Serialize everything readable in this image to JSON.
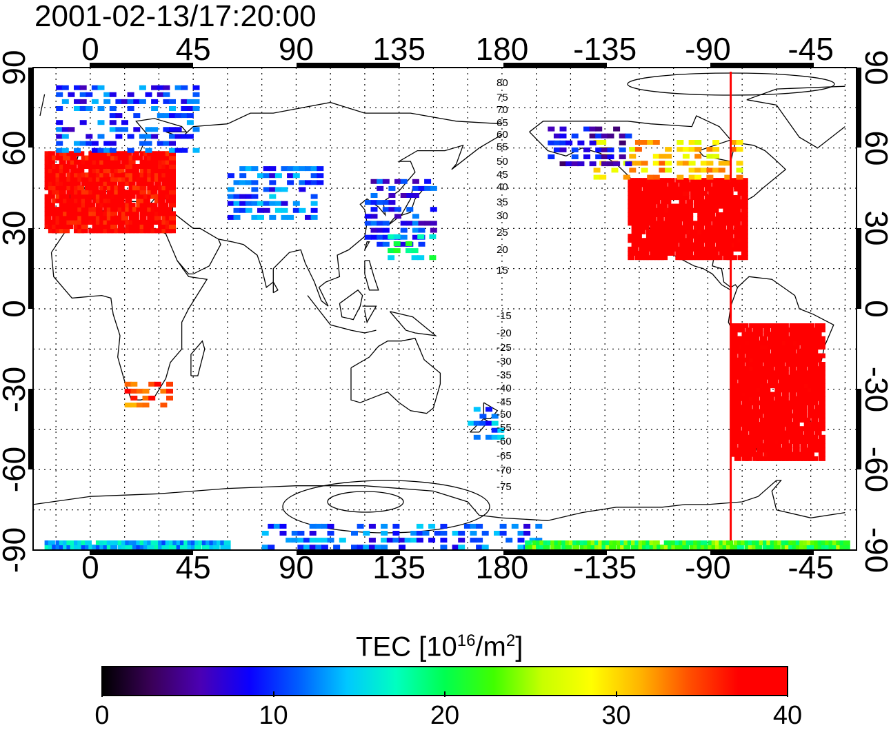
{
  "timestamp": "2001-02-13/17:20:00",
  "map": {
    "top_lon_ticks": [
      "0",
      "45",
      "90",
      "135",
      "180",
      "-135",
      "-90",
      "-45"
    ],
    "bottom_lon_ticks": [
      "0",
      "45",
      "90",
      "135",
      "180",
      "-135",
      "-90",
      "-45"
    ],
    "left_lat_ticks": [
      "90",
      "60",
      "30",
      "0",
      "-30",
      "-60",
      "-90"
    ],
    "right_lat_ticks": [
      "90",
      "60",
      "30",
      "0",
      "-30",
      "-60",
      "-90"
    ],
    "contour_labels": [
      "80",
      "75",
      "70",
      "65",
      "60",
      "55",
      "50",
      "45",
      "40",
      "35",
      "30",
      "25",
      "20",
      "15",
      "-15",
      "-20",
      "-25",
      "-30",
      "-35",
      "-40",
      "-45",
      "-50",
      "-55",
      "-60",
      "-65",
      "-70",
      "-75"
    ],
    "marker_line_lon": -80,
    "marker_line_color": "#ff0000"
  },
  "colorbar": {
    "title_prefix": "TEC  [10",
    "title_sup1": "16",
    "title_mid": "/m",
    "title_sup2": "2",
    "title_suffix": "]",
    "min": 0,
    "max": 40,
    "tick_labels": [
      "0",
      "10",
      "20",
      "30",
      "40"
    ],
    "colormap": [
      "#000000",
      "#3a0058",
      "#4b00b4",
      "#0a00ff",
      "#005dff",
      "#00c8ff",
      "#00ffc0",
      "#00ff50",
      "#40ff00",
      "#c8ff00",
      "#ffff00",
      "#ffb400",
      "#ff5000",
      "#ff0000",
      "#ff0000"
    ]
  },
  "chart_data": {
    "type": "map",
    "title": "2001-02-13/17:20:00",
    "value_label": "TEC [10^16/m^2]",
    "value_range": [
      0,
      40
    ],
    "lon_range": [
      -25,
      335
    ],
    "lat_range": [
      -90,
      90
    ],
    "regions": [
      {
        "lon": [
          -20,
          35
        ],
        "lat": [
          30,
          60
        ],
        "value": 38
      },
      {
        "lon": [
          -15,
          45
        ],
        "lat": [
          60,
          85
        ],
        "value": 10
      },
      {
        "lon": [
          60,
          100
        ],
        "lat": [
          35,
          55
        ],
        "value": 11
      },
      {
        "lon": [
          120,
          150
        ],
        "lat": [
          25,
          50
        ],
        "value": 9
      },
      {
        "lon": [
          130,
          150
        ],
        "lat": [
          20,
          30
        ],
        "value": 18
      },
      {
        "lon": [
          235,
          285
        ],
        "lat": [
          20,
          50
        ],
        "value": 40
      },
      {
        "lon": [
          220,
          285
        ],
        "lat": [
          50,
          65
        ],
        "value": 30
      },
      {
        "lon": [
          200,
          235
        ],
        "lat": [
          55,
          70
        ],
        "value": 7
      },
      {
        "lon": [
          280,
          320
        ],
        "lat": [
          -55,
          -5
        ],
        "value": 40
      },
      {
        "lon": [
          15,
          35
        ],
        "lat": [
          -35,
          -25
        ],
        "value": 35
      },
      {
        "lon": [
          165,
          180
        ],
        "lat": [
          -47,
          -35
        ],
        "value": 12
      },
      {
        "lon": [
          -20,
          60
        ],
        "lat": [
          -88,
          -86
        ],
        "value": 14
      },
      {
        "lon": [
          75,
          195
        ],
        "lat": [
          -88,
          -80
        ],
        "value": 11
      },
      {
        "lon": [
          190,
          330
        ],
        "lat": [
          -88,
          -85
        ],
        "value": 22
      }
    ]
  }
}
